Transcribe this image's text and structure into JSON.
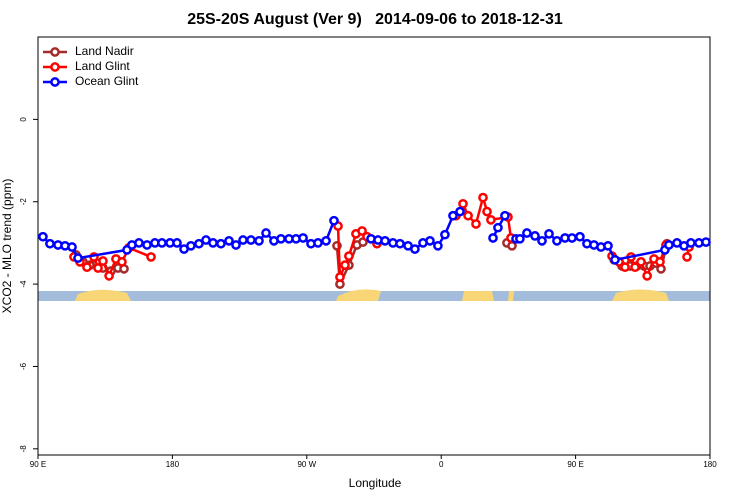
{
  "chart_data": {
    "type": "line",
    "title": "25S-20S August (Ver 9)   2014-09-06 to 2018-12-31",
    "xlabel": "Longitude",
    "ylabel": "XCO2 - MLO trend (ppm)",
    "xlim": [
      90,
      540
    ],
    "xticks": [
      {
        "value": 90,
        "label": "90 E"
      },
      {
        "value": 180,
        "label": "180"
      },
      {
        "value": 270,
        "label": "90 W"
      },
      {
        "value": 360,
        "label": "0"
      },
      {
        "value": 450,
        "label": "90 E"
      },
      {
        "value": 540,
        "label": "180"
      }
    ],
    "ylim": [
      -8.15,
      2.0
    ],
    "yticks": [
      0,
      -2,
      -4,
      -6,
      -8
    ],
    "legend": "topleft",
    "series": [
      {
        "name": "Land Nadir",
        "color": "#a52a2a",
        "x": [
          115.4,
          120.1,
          124.8,
          129.5,
          133.5,
          138.9,
          143.6,
          147.6,
          null,
          290.2,
          292.2,
          298.2,
          303.6,
          307.6,
          null,
          404.0,
          407.4,
          null,
          475.8,
          481.1,
          486.4,
          491.1,
          495.8,
          499.8,
          503.8,
          507.2,
          511.2
        ],
        "values": [
          -3.29,
          -3.46,
          -3.54,
          -3.49,
          -3.61,
          -3.68,
          -3.61,
          -3.63,
          null,
          -3.07,
          -4.0,
          -3.54,
          -3.05,
          -2.98,
          null,
          -3.0,
          -3.07,
          null,
          -3.41,
          -3.56,
          -3.56,
          -3.56,
          -3.56,
          -3.56,
          -3.49,
          -3.63,
          -3.02
        ]
      },
      {
        "name": "Land Glint",
        "color": "#ff0000",
        "x": [
          114.1,
          118.1,
          122.8,
          127.5,
          130.2,
          133.5,
          137.6,
          142.2,
          146.2,
          150.9,
          165.7,
          null,
          290.9,
          292.2,
          295.6,
          298.2,
          302.9,
          307.0,
          310.3,
          317.0,
          null,
          369.9,
          374.6,
          378.0,
          383.3,
          388.0,
          390.7,
          393.3,
          404.7,
          406.7,
          null,
          474.4,
          479.1,
          483.1,
          487.1,
          489.8,
          493.8,
          497.9,
          502.5,
          506.5,
          510.5,
          null,
          524.6,
          526.0
        ],
        "values": [
          -3.34,
          -3.46,
          -3.59,
          -3.34,
          -3.61,
          -3.44,
          -3.8,
          -3.39,
          -3.46,
          -3.12,
          -3.34,
          null,
          -2.59,
          -3.83,
          -3.54,
          -3.32,
          -2.78,
          -2.71,
          -2.85,
          -3.02,
          null,
          -2.34,
          -2.05,
          -2.34,
          -2.54,
          -1.9,
          -2.24,
          -2.44,
          -2.37,
          -2.88,
          null,
          -3.32,
          -3.46,
          -3.59,
          -3.34,
          -3.59,
          -3.46,
          -3.8,
          -3.39,
          -3.46,
          -3.05,
          null,
          -3.34,
          -3.1
        ]
      },
      {
        "name": "Ocean Glint",
        "color": "#0000ff",
        "x": [
          93.3,
          98.0,
          103.4,
          108.1,
          112.8,
          116.8,
          149.6,
          152.9,
          157.6,
          163.0,
          168.3,
          173.0,
          178.4,
          183.1,
          187.8,
          192.4,
          197.8,
          202.5,
          207.2,
          212.5,
          217.9,
          222.6,
          227.3,
          232.6,
          238.0,
          242.7,
          248.0,
          252.7,
          258.1,
          262.8,
          267.5,
          272.8,
          277.5,
          282.9,
          288.2,
          null,
          313.0,
          317.7,
          322.4,
          327.7,
          332.4,
          337.8,
          342.4,
          347.8,
          352.5,
          357.8,
          362.5,
          367.9,
          372.6,
          null,
          394.7,
          398.0,
          402.7,
          null,
          410.1,
          412.7,
          417.4,
          422.8,
          427.5,
          432.2,
          437.5,
          442.9,
          447.6,
          452.9,
          457.6,
          462.3,
          467.0,
          471.7,
          476.4,
          509.8,
          512.5,
          517.9,
          522.6,
          527.2,
          532.6,
          537.3
        ],
        "values": [
          -2.85,
          -3.02,
          -3.05,
          -3.07,
          -3.1,
          -3.37,
          -3.17,
          -3.05,
          -3.0,
          -3.05,
          -3.0,
          -3.0,
          -3.0,
          -3.0,
          -3.15,
          -3.07,
          -3.02,
          -2.93,
          -3.0,
          -3.02,
          -2.95,
          -3.05,
          -2.93,
          -2.93,
          -2.95,
          -2.76,
          -2.95,
          -2.9,
          -2.9,
          -2.9,
          -2.88,
          -3.02,
          -3.0,
          -2.95,
          -2.46,
          null,
          -2.9,
          -2.93,
          -2.95,
          -3.0,
          -3.02,
          -3.07,
          -3.15,
          -3.0,
          -2.95,
          -3.07,
          -2.8,
          -2.34,
          -2.24,
          null,
          -2.88,
          -2.63,
          -2.34,
          null,
          -2.9,
          -2.9,
          -2.76,
          -2.83,
          -2.95,
          -2.78,
          -2.95,
          -2.88,
          -2.88,
          -2.85,
          -3.02,
          -3.05,
          -3.1,
          -3.07,
          -3.41,
          -3.17,
          -3.05,
          -3.0,
          -3.07,
          -3.0,
          -3.0,
          -2.98
        ]
      }
    ]
  }
}
